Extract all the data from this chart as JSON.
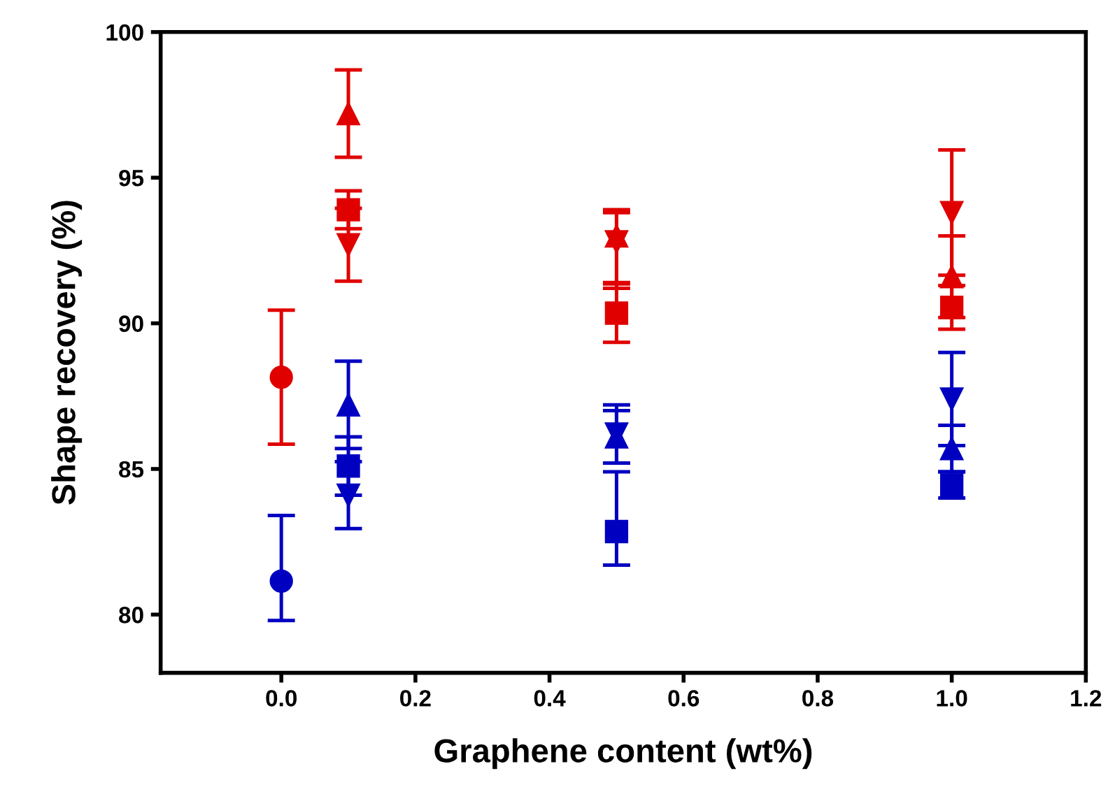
{
  "chart_data": {
    "type": "scatter",
    "xlabel": "Graphene content (wt%)",
    "ylabel": "Shape recovery (%)",
    "xlim": [
      -0.18,
      1.2
    ],
    "ylim": [
      78,
      100
    ],
    "xticks": [
      {
        "value": 0,
        "label": "0.0"
      },
      {
        "value": 0.2,
        "label": "0.2"
      },
      {
        "value": 0.4,
        "label": "0.4"
      },
      {
        "value": 0.6,
        "label": "0.6"
      },
      {
        "value": 0.8,
        "label": "0.8"
      },
      {
        "value": 1.0,
        "label": "1.0"
      },
      {
        "value": 1.2,
        "label": "1.2"
      }
    ],
    "yticks": [
      80,
      85,
      90,
      95,
      100
    ],
    "grid": false,
    "legend": false,
    "series": [
      {
        "color": "#e00000",
        "marker": "circle",
        "x": [
          0
        ],
        "values": [
          88.15
        ],
        "errors": [
          2.3
        ]
      },
      {
        "color": "#e00000",
        "marker": "triangle",
        "x": [
          0.1,
          0.5,
          1.0
        ],
        "values": [
          97.2,
          93.0,
          91.6
        ],
        "errors": [
          1.5,
          [
            91.2,
            93.9
          ],
          1.4
        ]
      },
      {
        "color": "#e00000",
        "marker": "square",
        "x": [
          0.1,
          0.5,
          1.0
        ],
        "values": [
          93.9,
          90.35,
          90.55
        ],
        "errors": [
          0.65,
          1.0,
          0.75
        ]
      },
      {
        "color": "#e00000",
        "marker": "triangle_down",
        "x": [
          0.1,
          0.5,
          1.0
        ],
        "values": [
          92.7,
          92.8,
          93.8
        ],
        "errors": [
          1.25,
          [
            91.4,
            93.8
          ],
          2.15
        ]
      },
      {
        "color": "#0000c0",
        "marker": "circle",
        "x": [
          0
        ],
        "values": [
          81.15
        ],
        "errors": [
          [
            79.8,
            83.4
          ]
        ]
      },
      {
        "color": "#0000c0",
        "marker": "triangle",
        "x": [
          0.1,
          0.5,
          1.0
        ],
        "values": [
          87.2,
          86.1,
          85.7
        ],
        "errors": [
          1.5,
          0.9,
          0.8
        ]
      },
      {
        "color": "#0000c0",
        "marker": "square",
        "x": [
          0.1,
          0.5,
          1.0
        ],
        "values": [
          85.1,
          82.85,
          84.45
        ],
        "errors": [
          1.0,
          [
            81.7,
            84.9
          ],
          0.45
        ]
      },
      {
        "color": "#0000c0",
        "marker": "triangle_down",
        "x": [
          0.1,
          0.5,
          1.0
        ],
        "values": [
          84.1,
          86.2,
          87.4
        ],
        "errors": [
          1.15,
          1.0,
          1.6
        ]
      }
    ]
  }
}
